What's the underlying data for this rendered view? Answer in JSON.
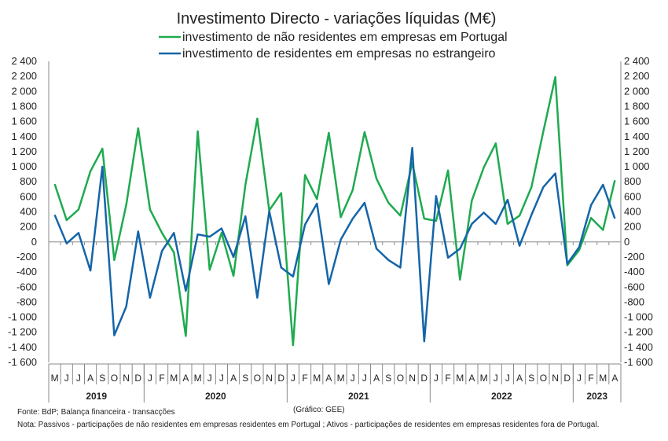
{
  "chart_data": {
    "type": "line",
    "title": "Investimento Directo - variações líquidas (M€)",
    "xlabel": "",
    "ylabel": "",
    "ylim": [
      -1600,
      2400
    ],
    "yticks": [
      2400,
      2200,
      2000,
      1800,
      1600,
      1400,
      1200,
      1000,
      800,
      600,
      400,
      200,
      0,
      -200,
      -400,
      -600,
      -800,
      -1000,
      -1200,
      -1400,
      -1600
    ],
    "ytick_labels": [
      "2 400",
      "2 200",
      "2 000",
      "1 800",
      "1 600",
      "1 400",
      "1 200",
      "1 000",
      "800",
      "600",
      "400",
      "200",
      "0",
      "-200",
      "-400",
      "-600",
      "-800",
      "-1 000",
      "-1 200",
      "-1 400",
      "-1 600"
    ],
    "grid": false,
    "legend": "top",
    "month_labels": [
      "M",
      "J",
      "J",
      "A",
      "S",
      "O",
      "N",
      "D",
      "J",
      "F",
      "M",
      "A",
      "M",
      "J",
      "J",
      "A",
      "S",
      "O",
      "N",
      "D",
      "J",
      "F",
      "M",
      "A",
      "M",
      "J",
      "J",
      "A",
      "S",
      "O",
      "N",
      "D",
      "J",
      "F",
      "M",
      "A",
      "M",
      "J",
      "J",
      "A",
      "S",
      "O",
      "N",
      "D",
      "J",
      "F",
      "M",
      "A"
    ],
    "years": [
      {
        "label": "2019",
        "start": 0,
        "count": 8
      },
      {
        "label": "2020",
        "start": 8,
        "count": 12
      },
      {
        "label": "2021",
        "start": 20,
        "count": 12
      },
      {
        "label": "2022",
        "start": 32,
        "count": 12
      },
      {
        "label": "2023",
        "start": 44,
        "count": 4
      }
    ],
    "series": [
      {
        "name": "investimento de não residentes em empresas em Portugal",
        "color": "#1faa4f",
        "values": [
          770,
          290,
          430,
          940,
          1240,
          -240,
          490,
          1510,
          430,
          120,
          -140,
          -1250,
          1470,
          -370,
          120,
          -450,
          760,
          1640,
          420,
          650,
          -1370,
          890,
          570,
          1450,
          330,
          690,
          1460,
          840,
          520,
          350,
          1050,
          310,
          280,
          950,
          -500,
          550,
          990,
          1310,
          240,
          350,
          730,
          1470,
          2190,
          -310,
          -110,
          320,
          160,
          820
        ]
      },
      {
        "name": "investimento de residentes em empresas no estrangeiro",
        "color": "#1565a8",
        "values": [
          360,
          -20,
          120,
          -380,
          1000,
          -1240,
          -860,
          140,
          -740,
          -120,
          120,
          -650,
          100,
          70,
          180,
          -200,
          340,
          -740,
          410,
          -340,
          -460,
          230,
          510,
          -560,
          30,
          310,
          520,
          -90,
          -240,
          -340,
          1250,
          -1320,
          610,
          -210,
          -90,
          240,
          390,
          240,
          560,
          -50,
          360,
          730,
          910,
          -290,
          -70,
          490,
          760,
          310
        ]
      }
    ]
  },
  "footer": {
    "source": "Fonte: BdP; Balança financeira - transacções",
    "credit": "(Gráfico: GEE)",
    "note": "Nota: Passivos - participações de não residentes em empresas residentes em Portugal ; Ativos - participações de residentes em empresas residentes fora de Portugal."
  }
}
